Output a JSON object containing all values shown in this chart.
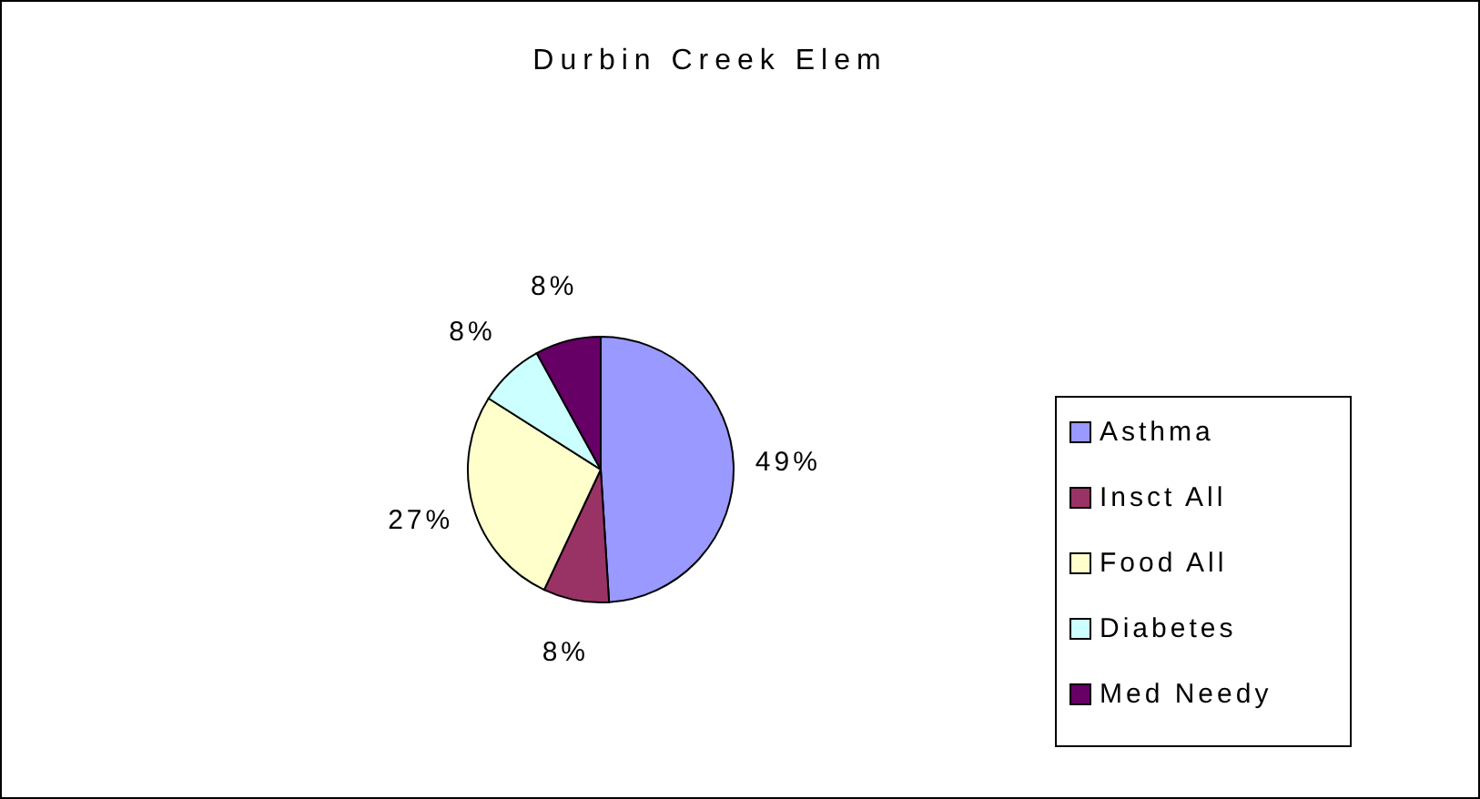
{
  "chart_data": {
    "type": "pie",
    "title": "Durbin Creek Elem",
    "categories": [
      "Asthma",
      "Insct All",
      "Food All",
      "Diabetes",
      "Med Needy"
    ],
    "values": [
      49,
      8,
      27,
      8,
      8
    ],
    "value_labels": [
      "49%",
      "8%",
      "27%",
      "8%",
      "8%"
    ],
    "colors": [
      "#9999ff",
      "#993366",
      "#ffffcc",
      "#ccffff",
      "#660066"
    ],
    "legend": "right"
  }
}
